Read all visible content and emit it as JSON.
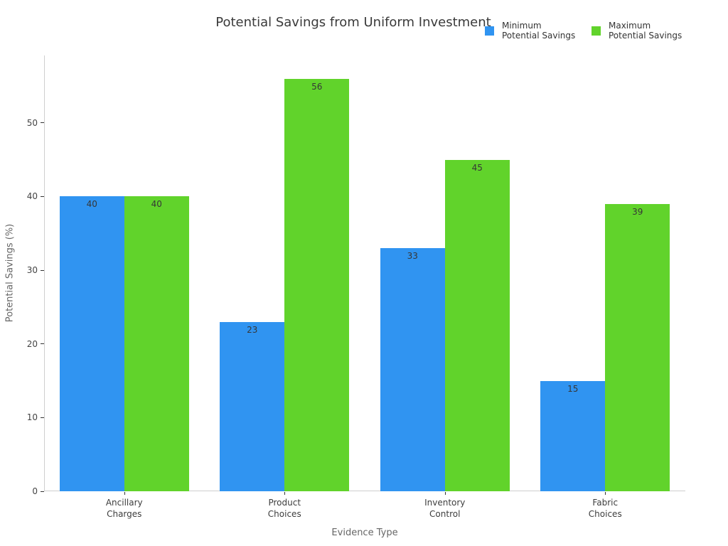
{
  "chart_data": {
    "type": "bar",
    "title": "Potential Savings from Uniform Investment",
    "xlabel": "Evidence Type",
    "ylabel": "Potential Savings (%)",
    "categories": [
      [
        "Ancillary",
        "Charges"
      ],
      [
        "Product",
        "Choices"
      ],
      [
        "Inventory",
        "Control"
      ],
      [
        "Fabric",
        "Choices"
      ]
    ],
    "series": [
      {
        "name": "Minimum Potential Savings",
        "name_lines": [
          "Minimum",
          "Potential Savings"
        ],
        "color": "#3094f1",
        "values": [
          40,
          23,
          33,
          15
        ]
      },
      {
        "name": "Maximum Potential Savings",
        "name_lines": [
          "Maximum",
          "Potential Savings"
        ],
        "color": "#61d32b",
        "values": [
          40,
          56,
          45,
          39
        ]
      }
    ],
    "yticks": [
      0,
      10,
      20,
      30,
      40,
      50
    ],
    "ylim": [
      0,
      59.1
    ],
    "grid": false,
    "legend_position": "top-right",
    "bar_labels_shown": true
  },
  "colors": {
    "background": "#ffffff",
    "axis_line": "#cfcfcf",
    "tick_mark": "#333333",
    "title_text": "#3a3a3a",
    "tick_text": "#444444",
    "axis_title_text": "#666666",
    "bar_label_text": "#363636"
  }
}
